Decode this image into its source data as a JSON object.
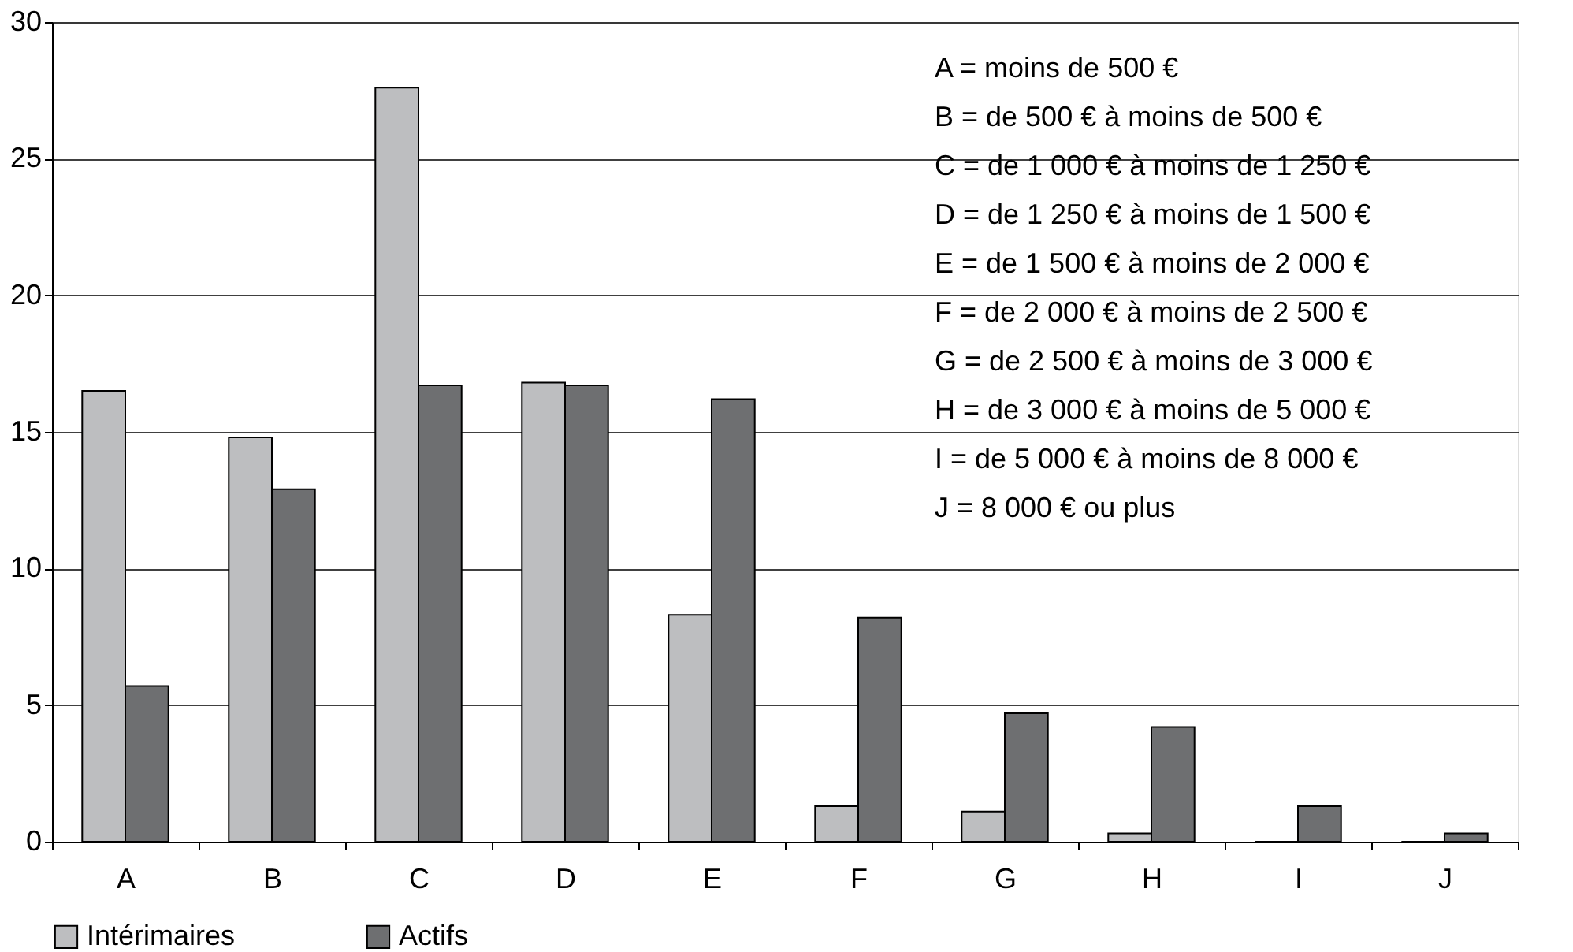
{
  "chart_data": {
    "type": "bar",
    "categories": [
      "A",
      "B",
      "C",
      "D",
      "E",
      "F",
      "G",
      "H",
      "I",
      "J"
    ],
    "series": [
      {
        "name": "Intérimaires",
        "color": "#bdbec0",
        "values": [
          16.5,
          14.8,
          27.6,
          16.8,
          8.3,
          1.3,
          1.1,
          0.3,
          0,
          0
        ]
      },
      {
        "name": "Actifs",
        "color": "#6e6f71",
        "values": [
          5.7,
          12.9,
          16.7,
          16.7,
          16.2,
          8.2,
          4.7,
          4.2,
          1.3,
          0.3
        ]
      }
    ],
    "ylim": [
      0,
      30
    ],
    "yticks": [
      0,
      5,
      10,
      15,
      20,
      25,
      30
    ],
    "grid": "y",
    "legend": "bottom",
    "annotations": [
      "A = moins de 500 €",
      "B = de 500 € à moins de 500 €",
      "C = de 1 000 € à moins de 1 250 €",
      "D = de 1 250 € à moins de 1 500 €",
      "E = de 1 500 € à moins de 2 000 €",
      "F = de 2 000 € à moins de 2 500 €",
      "G = de 2 500 € à moins de 3 000 €",
      "H = de 3 000 € à moins de 5 000 €",
      "I = de 5 000 € à moins de 8 000 €",
      "J = 8 000 € ou plus"
    ]
  }
}
